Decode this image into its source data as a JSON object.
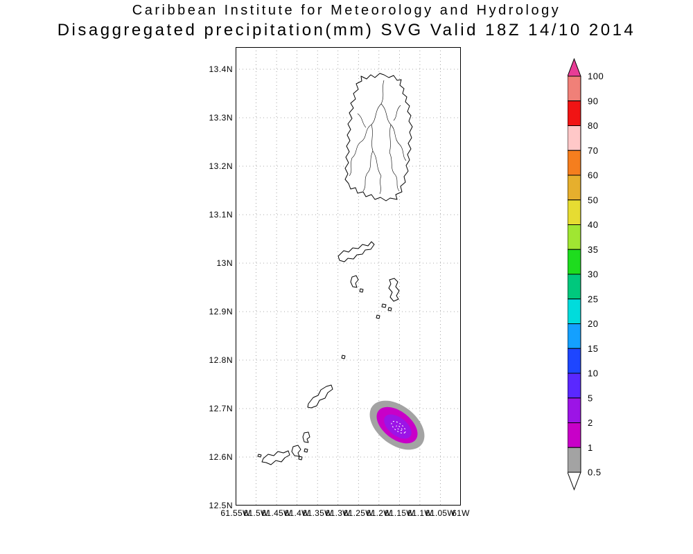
{
  "title": {
    "line1": "Caribbean Institute for Meteorology and Hydrology",
    "line2": "Disaggregated precipitation(mm) SVG Valid 18Z 14/10 2014"
  },
  "axes": {
    "lat_labels": [
      "13.4N",
      "13.3N",
      "13.2N",
      "13.1N",
      "13N",
      "12.9N",
      "12.8N",
      "12.7N",
      "12.6N",
      "12.5N"
    ],
    "lon_labels": [
      "61.55W",
      "61.5W",
      "61.45W",
      "61.4W",
      "61.35W",
      "61.3W",
      "61.25W",
      "61.2W",
      "61.15W",
      "61.1W",
      "61.05W",
      "61W"
    ]
  },
  "colorbar": {
    "levels": [
      "100",
      "90",
      "80",
      "70",
      "60",
      "50",
      "40",
      "35",
      "30",
      "25",
      "20",
      "15",
      "10",
      "5",
      "2",
      "1",
      "0.5"
    ],
    "top_color": "#e83c96",
    "bottom_color": "#ffffff",
    "band_colors_top_to_bottom": [
      "#f08078",
      "#f01414",
      "#ffc8c8",
      "#f57e1e",
      "#e6af2d",
      "#e6dc32",
      "#a0e632",
      "#1edc1e",
      "#00c87d",
      "#00dcdc",
      "#14a0ff",
      "#1e46ff",
      "#5a28ff",
      "#9c14e6",
      "#c800c8",
      "#a3a3a3"
    ]
  },
  "precipitation_feature": {
    "approx_center_lat": "12.65N",
    "approx_center_lon": "61.17W",
    "band_ranges_mm": [
      "0.5-1",
      "1-2",
      "2-5"
    ],
    "band_colors": [
      "#a3a3a3",
      "#c800c8",
      "#9c14e6"
    ]
  }
}
